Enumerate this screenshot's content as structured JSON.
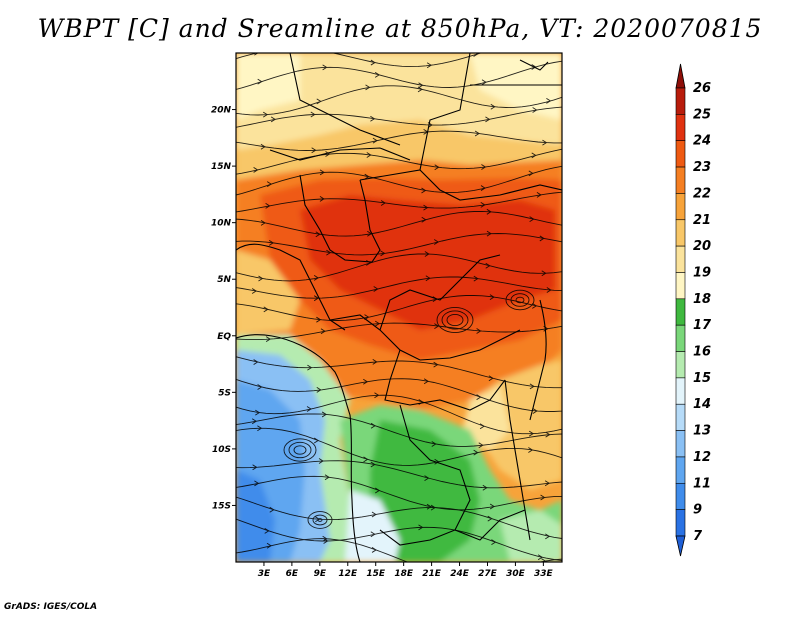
{
  "title": "WBPT [C] and Sreamline at 850hPa, VT: 2020070815",
  "footer": "GrADS: IGES/COLA",
  "map": {
    "lon_range": [
      0,
      35
    ],
    "lat_range": [
      -20,
      25
    ],
    "lon_ticks": [
      "3E",
      "6E",
      "9E",
      "12E",
      "15E",
      "18E",
      "21E",
      "24E",
      "27E",
      "30E",
      "33E"
    ],
    "lat_ticks": [
      "20N",
      "15N",
      "10N",
      "5N",
      "EQ",
      "5S",
      "10S",
      "15S"
    ]
  },
  "colorbar": {
    "labels": [
      "7",
      "9",
      "11",
      "12",
      "13",
      "14",
      "15",
      "16",
      "17",
      "18",
      "19",
      "20",
      "21",
      "22",
      "23",
      "24",
      "25",
      "26"
    ],
    "colors": [
      "#1f5fd6",
      "#2a72e4",
      "#3f8ceb",
      "#5fa6f0",
      "#8ac0f4",
      "#b6dbf8",
      "#e3f4fb",
      "#b5ebb0",
      "#7ad77a",
      "#3fb93f",
      "#fff6c4",
      "#fbe39c",
      "#f8c768",
      "#f7a33a",
      "#f57f22",
      "#ef5a12",
      "#e03210",
      "#b81c0c",
      "#8e0e08"
    ]
  }
}
